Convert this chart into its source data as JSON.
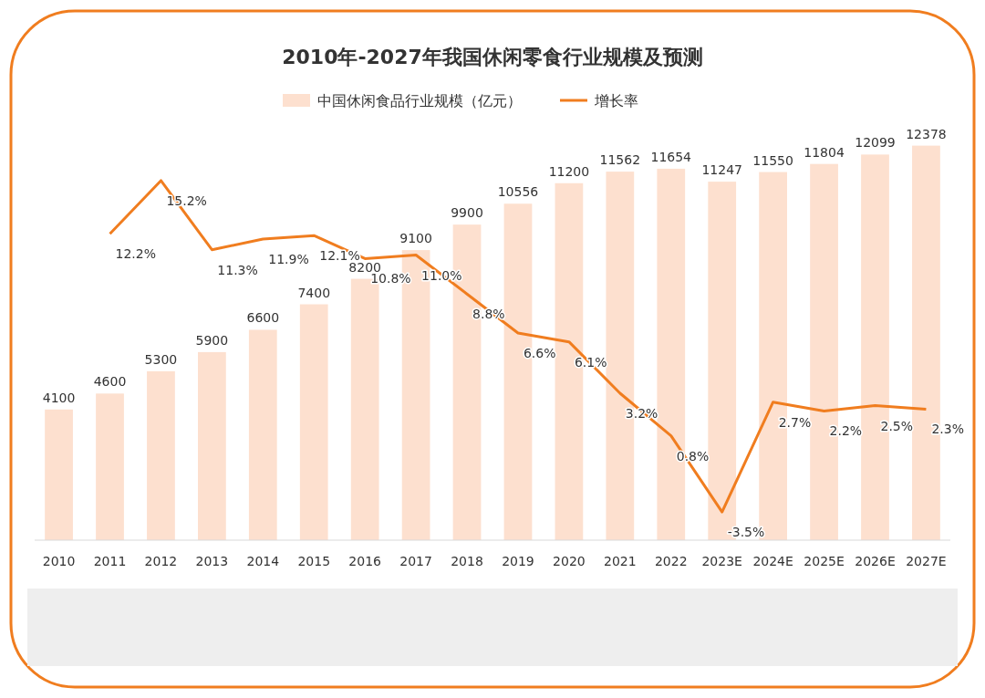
{
  "chart_data": {
    "type": "bar",
    "title": "2010年-2027年我国休闲零食行业规模及预测",
    "categories": [
      "2010",
      "2011",
      "2012",
      "2013",
      "2014",
      "2015",
      "2016",
      "2017",
      "2018",
      "2019",
      "2020",
      "2021",
      "2022",
      "2023E",
      "2024E",
      "2025E",
      "2026E",
      "2027E"
    ],
    "series": [
      {
        "name": "中国休闲食品行业规模（亿元）",
        "color": "#fde0cf",
        "values": [
          4100,
          4600,
          5300,
          5900,
          6600,
          7400,
          8200,
          9100,
          9900,
          10556,
          11200,
          11562,
          11654,
          11247,
          11550,
          11804,
          12099,
          12378
        ]
      },
      {
        "name": "增长率",
        "type": "line",
        "axis": "y2",
        "color": "#f07d1f",
        "values": [
          null,
          12.2,
          15.2,
          11.3,
          11.9,
          12.1,
          10.8,
          11.0,
          8.8,
          6.6,
          6.1,
          3.2,
          0.8,
          -3.5,
          2.7,
          2.2,
          2.5,
          2.3
        ],
        "value_labels": [
          null,
          "12.2%",
          "15.2%",
          "11.3%",
          "11.9%",
          "12.1%",
          "10.8%",
          "11.0%",
          "8.8%",
          "6.6%",
          "6.1%",
          "3.2%",
          "0.8%",
          "-3.5%",
          "2.7%",
          "2.2%",
          "2.5%",
          "2.3%"
        ]
      }
    ],
    "data_labels": true,
    "tick_labels": "x",
    "legend": "top",
    "grid": false,
    "marker": "none",
    "line_style": "solid"
  }
}
